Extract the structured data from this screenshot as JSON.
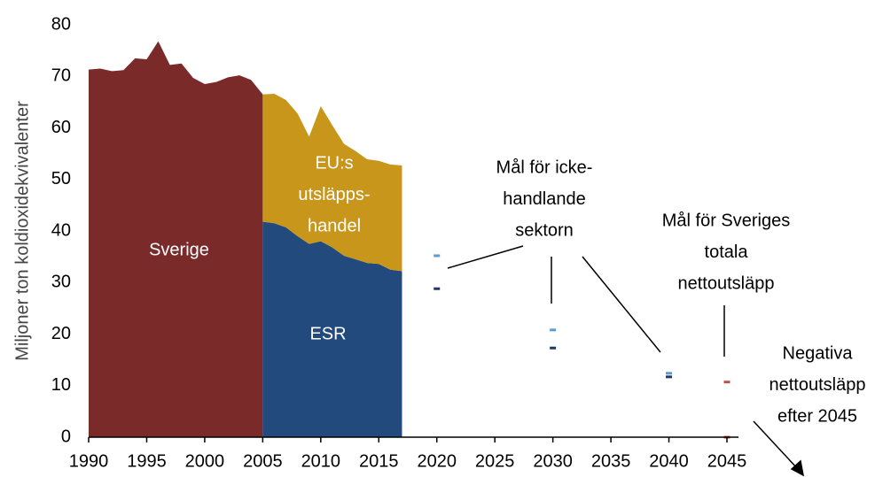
{
  "chart_data": {
    "type": "area",
    "y_label": "Miljoner ton koldioxidekvivalenter",
    "xlim": [
      1990,
      2046
    ],
    "xticks": [
      1990,
      1995,
      2000,
      2005,
      2010,
      2015,
      2020,
      2025,
      2030,
      2035,
      2040,
      2045
    ],
    "ylim": [
      0,
      80
    ],
    "yticks": [
      0,
      10,
      20,
      30,
      40,
      50,
      60,
      70,
      80
    ],
    "grid": false,
    "series": [
      {
        "color": "#7b2a2a",
        "x": [
          1990,
          1991,
          1992,
          1993,
          1994,
          1995,
          1996,
          1997,
          1998,
          1999,
          2000,
          2001,
          2002,
          2003,
          2004,
          2005
        ],
        "values": [
          71.3,
          71.5,
          71.0,
          71.2,
          73.5,
          73.3,
          76.8,
          72.2,
          72.5,
          69.7,
          68.5,
          68.9,
          69.8,
          70.2,
          69.3,
          66.5
        ]
      },
      {
        "color": "#234a7d",
        "x": [
          2005,
          2006,
          2007,
          2008,
          2009,
          2010,
          2011,
          2012,
          2013,
          2014,
          2015,
          2016,
          2017
        ],
        "values": [
          41.8,
          41.5,
          40.7,
          39.0,
          37.5,
          38.0,
          36.8,
          35.2,
          34.5,
          33.8,
          33.6,
          32.5,
          32.2
        ]
      },
      {
        "color": "#c8961a",
        "stacked_on": 1,
        "x": [
          2005,
          2006,
          2007,
          2008,
          2009,
          2010,
          2011,
          2012,
          2013,
          2014,
          2015,
          2016,
          2017
        ],
        "values": [
          24.7,
          25.1,
          24.7,
          23.8,
          20.8,
          26.2,
          23.7,
          21.7,
          21.0,
          20.1,
          20.0,
          20.4,
          20.5
        ]
      }
    ],
    "markers": [
      {
        "color": "#5b9bd5",
        "x": [
          2020,
          2030,
          2040
        ],
        "values": [
          35.2,
          20.8,
          12.4
        ]
      },
      {
        "color": "#1f3864",
        "x": [
          2020,
          2030,
          2040
        ],
        "values": [
          28.8,
          17.3,
          11.7
        ]
      },
      {
        "color": "#c0504d",
        "x": [
          2045,
          2045
        ],
        "values": [
          10.7,
          0
        ]
      }
    ],
    "annotations": [
      [
        "Sverige"
      ],
      [
        "ESR"
      ],
      [
        "EU:s",
        "utsläpps-",
        "handel"
      ],
      [
        "Mål för icke-",
        "handlande",
        "sektorn"
      ],
      [
        "Mål för Sveriges",
        "totala",
        "nettoutsläpp"
      ],
      [
        "Negativa",
        "nettoutsläpp",
        "efter 2045"
      ]
    ]
  }
}
